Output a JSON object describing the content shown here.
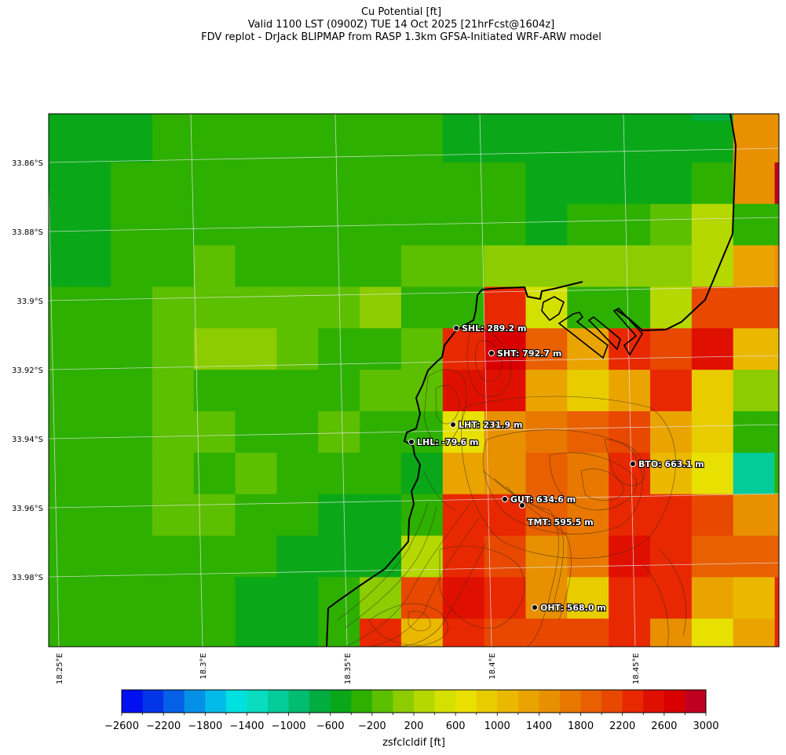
{
  "title": {
    "line1": "Cu Potential [ft]",
    "line2": "Valid 1100 LST (0900Z) TUE 14 Oct 2025 [21hrFcst@1604z]",
    "line3": "FDV replot - DrJack BLIPMAP from RASP 1.3km GFSA-Initiated WRF-ARW model"
  },
  "chart_data": {
    "type": "heatmap",
    "colorbar": {
      "label": "zsfclcldif [ft]",
      "min": -2600,
      "max": 3000,
      "step": 200,
      "tick_labels": [
        "−2600",
        "−2200",
        "−1800",
        "−1400",
        "−1000",
        "−600",
        "−200",
        "200",
        "600",
        "1000",
        "1400",
        "1800",
        "2200",
        "2600",
        "3000"
      ],
      "colors": [
        "#0010f0",
        "#0335e8",
        "#0560e8",
        "#0590e8",
        "#03bbe8",
        "#00e0e0",
        "#0adcc0",
        "#03cc98",
        "#02bc70",
        "#02ac40",
        "#0aa818",
        "#2db000",
        "#5cbf00",
        "#8ccc00",
        "#b4d800",
        "#d4e000",
        "#e8e000",
        "#e8cc00",
        "#ebb800",
        "#eaa400",
        "#e89000",
        "#e87800",
        "#e86000",
        "#e84800",
        "#e82800",
        "#e01000",
        "#d80000",
        "#c00020"
      ]
    },
    "lat_labels": [
      "33.86°S",
      "33.88°S",
      "33.9°S",
      "33.92°S",
      "33.94°S",
      "33.96°S",
      "33.98°S"
    ],
    "lon_labels": [
      "18.25°E",
      "18.3°E",
      "18.35°E",
      "18.4°E",
      "18.45°E"
    ],
    "grid_values_ft": [
      [
        -600,
        -600,
        -600,
        -400,
        -400,
        -400,
        -400,
        -400,
        -400,
        -400,
        -600,
        -600,
        -600,
        -600,
        -600,
        -600,
        -800,
        1400,
        1400
      ],
      [
        -600,
        -600,
        -600,
        -400,
        -400,
        -400,
        -400,
        -400,
        -400,
        -400,
        -600,
        -600,
        -600,
        -600,
        -600,
        -600,
        -600,
        1400,
        1400
      ],
      [
        -600,
        -600,
        -400,
        -400,
        -400,
        -400,
        -400,
        -400,
        -400,
        -400,
        -400,
        -400,
        -600,
        -600,
        -600,
        -600,
        -400,
        1400,
        2800
      ],
      [
        -600,
        -600,
        -400,
        -400,
        -400,
        -400,
        -400,
        -400,
        -400,
        -400,
        -400,
        -400,
        -600,
        -400,
        -400,
        -200,
        200,
        -400,
        -400
      ],
      [
        -600,
        -600,
        -400,
        -400,
        -200,
        -400,
        -400,
        -400,
        -400,
        -200,
        -200,
        0,
        0,
        0,
        0,
        0,
        200,
        1200,
        1400
      ],
      [
        -400,
        -400,
        -400,
        -200,
        -200,
        -200,
        -200,
        -200,
        0,
        -400,
        -400,
        2200,
        400,
        -400,
        -400,
        200,
        2000,
        2000,
        2000
      ],
      [
        -400,
        -400,
        -400,
        -200,
        0,
        0,
        -200,
        -400,
        -400,
        -200,
        2200,
        2600,
        1800,
        1200,
        2200,
        2000,
        2400,
        1000,
        1000
      ],
      [
        -400,
        -400,
        -400,
        -200,
        -400,
        -400,
        -400,
        -400,
        -200,
        -200,
        2400,
        2400,
        1200,
        800,
        1200,
        2200,
        800,
        0,
        0
      ],
      [
        -400,
        -400,
        -400,
        -200,
        -200,
        -400,
        -400,
        -200,
        -400,
        -400,
        600,
        1400,
        1600,
        1800,
        2000,
        1200,
        800,
        -400,
        -400
      ],
      [
        -400,
        -400,
        -400,
        -200,
        -400,
        -200,
        -400,
        -400,
        -400,
        -600,
        1200,
        1400,
        1800,
        1600,
        2200,
        1000,
        600,
        -1200,
        -400
      ],
      [
        -400,
        -400,
        -400,
        -200,
        -200,
        -400,
        -400,
        -600,
        -600,
        -400,
        2200,
        2200,
        1800,
        1600,
        2200,
        2200,
        2000,
        1400,
        1400
      ],
      [
        -400,
        -400,
        -400,
        -400,
        -400,
        -400,
        -600,
        -600,
        -600,
        200,
        2200,
        2000,
        1400,
        1600,
        2400,
        2200,
        1800,
        1800,
        1800
      ],
      [
        -400,
        -400,
        -400,
        -400,
        -400,
        -600,
        -600,
        -400,
        0,
        2000,
        2400,
        2200,
        1400,
        800,
        2200,
        2200,
        1200,
        1000,
        2200
      ],
      [
        -400,
        -400,
        -400,
        -400,
        -400,
        -600,
        -600,
        -400,
        2200,
        1000,
        2200,
        2000,
        2000,
        2000,
        2200,
        1400,
        600,
        1200,
        2200
      ]
    ],
    "stations": [
      {
        "label": "SHL: 289.2 m"
      },
      {
        "label": "SHT: 792.7 m"
      },
      {
        "label": "LHT: 231.9 m"
      },
      {
        "label": "LHL: -79.6 m"
      },
      {
        "label": "BTO: 663.1 m"
      },
      {
        "label": "GUT: 634.6 m"
      },
      {
        "label": "TMT: 595.5 m"
      },
      {
        "label": "OHT: 568.0 m"
      }
    ]
  }
}
